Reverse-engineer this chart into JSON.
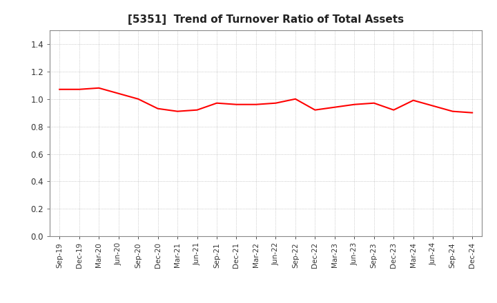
{
  "title": "[5351]  Trend of Turnover Ratio of Total Assets",
  "title_fontsize": 11,
  "line_color": "#FF0000",
  "line_width": 1.5,
  "background_color": "#FFFFFF",
  "grid_color": "#AAAAAA",
  "ylim": [
    0.0,
    1.5
  ],
  "yticks": [
    0.0,
    0.2,
    0.4,
    0.6,
    0.8,
    1.0,
    1.2,
    1.4
  ],
  "labels": [
    "Sep-19",
    "Dec-19",
    "Mar-20",
    "Jun-20",
    "Sep-20",
    "Dec-20",
    "Mar-21",
    "Jun-21",
    "Sep-21",
    "Dec-21",
    "Mar-22",
    "Jun-22",
    "Sep-22",
    "Dec-22",
    "Mar-23",
    "Jun-23",
    "Sep-23",
    "Dec-23",
    "Mar-24",
    "Jun-24",
    "Sep-24",
    "Dec-24"
  ],
  "values": [
    1.07,
    1.07,
    1.08,
    1.04,
    1.0,
    0.93,
    0.91,
    0.92,
    0.97,
    0.96,
    0.96,
    0.97,
    1.0,
    0.92,
    0.94,
    0.96,
    0.97,
    0.92,
    0.99,
    0.95,
    0.91,
    0.9
  ]
}
